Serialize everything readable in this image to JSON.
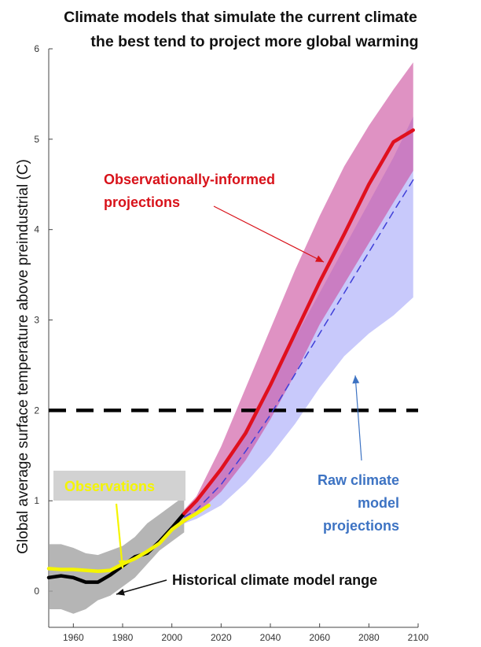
{
  "chart_data": {
    "type": "line",
    "title_line1": "Climate models that simulate the current climate",
    "title_line2": "the best tend to project more global warming",
    "ylabel": "Global average surface temperature above preindustrial (C)",
    "xlabel": "",
    "xlim": [
      1950,
      2100
    ],
    "ylim": [
      -0.4,
      6
    ],
    "x_ticks": [
      1960,
      1980,
      2000,
      2020,
      2040,
      2060,
      2080,
      2100
    ],
    "y_ticks": [
      0,
      1,
      2,
      3,
      4,
      5,
      6
    ],
    "threshold": {
      "y": 2,
      "style": "dashed",
      "color": "#000000"
    },
    "series": [
      {
        "name": "Historical climate model range",
        "kind": "band",
        "color": "#a3a3a3",
        "x": [
          1950,
          1955,
          1960,
          1965,
          1970,
          1975,
          1980,
          1985,
          1990,
          1995,
          2000,
          2005
        ],
        "lower": [
          -0.2,
          -0.2,
          -0.25,
          -0.2,
          -0.1,
          -0.05,
          0.05,
          0.15,
          0.3,
          0.45,
          0.55,
          0.65
        ],
        "upper": [
          0.52,
          0.52,
          0.48,
          0.42,
          0.4,
          0.45,
          0.5,
          0.6,
          0.75,
          0.85,
          0.95,
          1.05
        ]
      },
      {
        "name": "Historical model mean",
        "kind": "line",
        "color": "#000000",
        "x": [
          1950,
          1955,
          1960,
          1965,
          1970,
          1975,
          1980,
          1985,
          1990,
          1995,
          2000,
          2005
        ],
        "values": [
          0.15,
          0.17,
          0.15,
          0.1,
          0.1,
          0.18,
          0.28,
          0.38,
          0.42,
          0.55,
          0.7,
          0.86
        ]
      },
      {
        "name": "Observations",
        "kind": "line",
        "color": "#f5f500",
        "x": [
          1950,
          1955,
          1960,
          1965,
          1970,
          1975,
          1980,
          1985,
          1990,
          1995,
          2000,
          2005,
          2010,
          2015
        ],
        "values": [
          0.25,
          0.24,
          0.24,
          0.23,
          0.22,
          0.23,
          0.3,
          0.36,
          0.44,
          0.53,
          0.68,
          0.78,
          0.86,
          0.95
        ]
      },
      {
        "name": "Raw climate model projections",
        "kind": "band",
        "color": "#9a9cf7",
        "x": [
          2005,
          2010,
          2020,
          2030,
          2040,
          2050,
          2060,
          2070,
          2080,
          2090,
          2098
        ],
        "lower": [
          0.75,
          0.8,
          0.95,
          1.2,
          1.5,
          1.85,
          2.25,
          2.6,
          2.85,
          3.05,
          3.25
        ],
        "upper": [
          0.85,
          0.98,
          1.35,
          1.8,
          2.3,
          2.8,
          3.3,
          3.8,
          4.3,
          4.8,
          5.25
        ]
      },
      {
        "name": "Observationally-informed projections",
        "kind": "band",
        "color": "#cc4f9e",
        "x": [
          2005,
          2010,
          2020,
          2030,
          2040,
          2050,
          2060,
          2070,
          2080,
          2090,
          2098
        ],
        "lower": [
          0.75,
          0.85,
          1.1,
          1.45,
          1.9,
          2.4,
          2.95,
          3.4,
          3.85,
          4.3,
          4.65
        ],
        "upper": [
          0.9,
          1.05,
          1.6,
          2.25,
          2.9,
          3.55,
          4.15,
          4.7,
          5.15,
          5.55,
          5.85
        ]
      },
      {
        "name": "Raw model mean",
        "kind": "line",
        "style": "dashed",
        "color": "#3f3fd8",
        "x": [
          2005,
          2010,
          2020,
          2030,
          2040,
          2050,
          2060,
          2070,
          2080,
          2090,
          2098
        ],
        "values": [
          0.82,
          0.9,
          1.18,
          1.55,
          1.95,
          2.4,
          2.85,
          3.3,
          3.75,
          4.2,
          4.55
        ]
      },
      {
        "name": "Observationally-informed mean",
        "kind": "line",
        "color": "#e0101e",
        "x": [
          2005,
          2010,
          2020,
          2030,
          2040,
          2050,
          2060,
          2070,
          2080,
          2090,
          2098
        ],
        "values": [
          0.86,
          1.0,
          1.35,
          1.75,
          2.28,
          2.85,
          3.42,
          3.95,
          4.5,
          4.97,
          5.1
        ]
      }
    ],
    "annotations": {
      "observed_line1": "Observationally-informed",
      "observed_line2": "projections",
      "raw_line1": "Raw climate",
      "raw_line2": "model",
      "raw_line3": "projections",
      "observations_label": "Observations",
      "historical_label": "Historical climate model range"
    },
    "annotation_colors": {
      "observed": "#d8121a",
      "raw": "#3d73c3",
      "observations": "#f5f500",
      "historical": "#111111"
    }
  }
}
